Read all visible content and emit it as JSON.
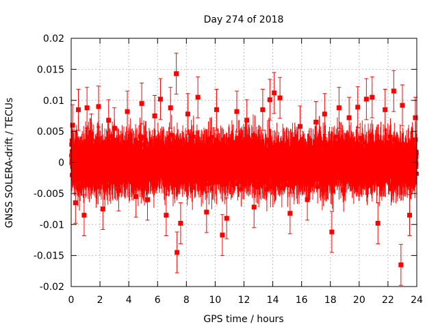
{
  "chart_data": {
    "type": "scatter",
    "title": "Day 274 of 2018",
    "xlabel": "GPS time / hours",
    "ylabel": "GNSS SOLERA-drift / TECUs",
    "xlim": [
      0,
      24
    ],
    "ylim": [
      -0.02,
      0.02
    ],
    "xticks": [
      "0",
      "2",
      "4",
      "6",
      "8",
      "10",
      "12",
      "14",
      "16",
      "18",
      "20",
      "22",
      "24"
    ],
    "yticks": [
      "0.02",
      "0.015",
      "0.01",
      "0.005",
      "0",
      "-0.005",
      "-0.01",
      "-0.015",
      "-0.02"
    ],
    "grid": true,
    "marker_color": "#ff0000",
    "error_bar_typical": 0.003,
    "points_density_note": "dense series of ~2900 points, values mostly within ±0.007",
    "series": [
      {
        "x": [
          0.1,
          0.3,
          0.5,
          0.9,
          1.1,
          1.4,
          1.9,
          2.2,
          2.6,
          3.0,
          3.3,
          3.9,
          4.5,
          4.9,
          5.3,
          5.8,
          6.2,
          6.6,
          6.9,
          7.3,
          7.35,
          7.6,
          8.1,
          8.8,
          9.4,
          10.1,
          10.5,
          10.8,
          11.5,
          12.2,
          12.7,
          13.3,
          13.8,
          14.1,
          14.5,
          15.2,
          15.9,
          16.4,
          17.0,
          17.6,
          18.1,
          18.6,
          19.3,
          19.9,
          20.5,
          20.9,
          21.3,
          21.8,
          22.4,
          22.9,
          23.0,
          23.5,
          23.9
        ],
        "y": [
          0.006,
          -0.0065,
          0.0085,
          -0.0085,
          0.0088,
          0.0045,
          0.009,
          -0.0075,
          0.0068,
          0.0055,
          -0.0045,
          0.0082,
          -0.0055,
          0.0095,
          -0.006,
          0.0075,
          0.0102,
          -0.0085,
          0.0088,
          0.0143,
          -0.0145,
          -0.0098,
          0.0078,
          0.0105,
          -0.008,
          0.0085,
          -0.0117,
          -0.009,
          0.0082,
          0.0068,
          -0.0072,
          0.0085,
          0.0101,
          0.0112,
          0.0104,
          -0.0082,
          0.0058,
          -0.006,
          0.0065,
          0.0078,
          -0.0112,
          0.0088,
          0.0072,
          0.0089,
          0.0102,
          0.0105,
          -0.0098,
          0.0085,
          0.0115,
          -0.0165,
          0.0092,
          -0.0085,
          0.0072
        ]
      }
    ]
  }
}
